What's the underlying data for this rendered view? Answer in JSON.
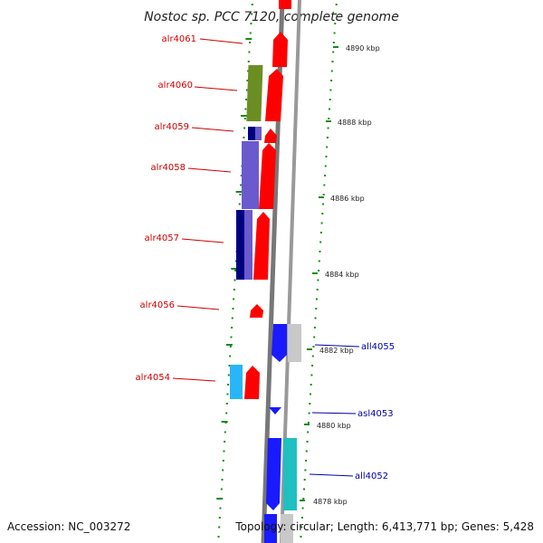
{
  "title": "Nostoc sp. PCC 7120, complete genome",
  "accession": "Accession: NC_003272",
  "summary": "Topology: circular; Length: 6,413,771 bp; Genes: 5,428",
  "colors": {
    "forward": "#ff0000",
    "reverse_blue": "#1a1aff",
    "olive": "#6b8e23",
    "navy": "#000080",
    "slate": "#6a5acd",
    "sky": "#29b6f6",
    "teal": "#20c0c0",
    "gray": "#c0c0c0",
    "tick": "#1a8a1a",
    "backbone": "#888888"
  },
  "position_labels": [
    "4890 kbp",
    "4888 kbp",
    "4886 kbp",
    "4884 kbp",
    "4882 kbp",
    "4880 kbp",
    "4878 kbp"
  ],
  "genes_left": [
    "alr4061",
    "alr4060",
    "alr4059",
    "alr4058",
    "alr4057",
    "alr4056",
    "alr4054"
  ],
  "genes_right": [
    "all4055",
    "asl4053",
    "all4052"
  ]
}
